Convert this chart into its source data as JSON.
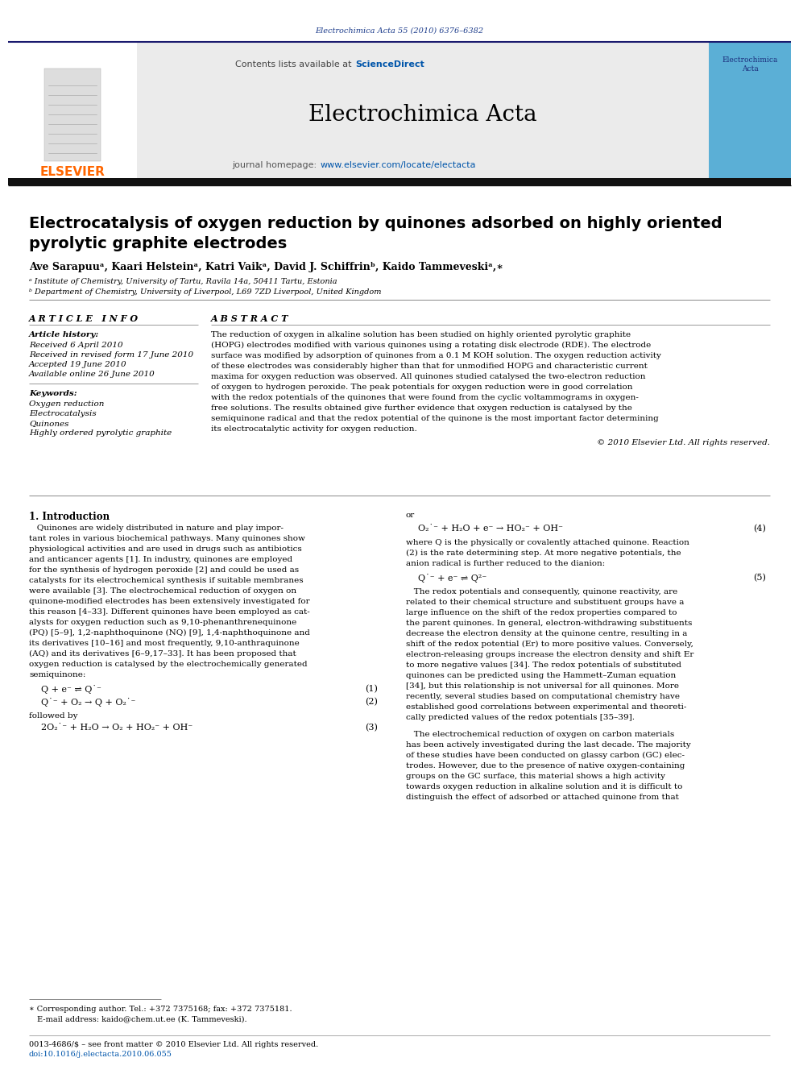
{
  "page_bg": "#ffffff",
  "header_journal_text": "Electrochimica Acta 55 (2010) 6376–6382",
  "header_journal_color": "#1a3a8a",
  "journal_banner_bg": "#e8e8e8",
  "journal_banner_text": "Electrochimica Acta",
  "contents_text": "Contents lists available at ",
  "sciencedirect_text": "ScienceDirect",
  "sciencedirect_color": "#0055aa",
  "homepage_label": "journal homepage: ",
  "homepage_url": "www.elsevier.com/locate/electacta",
  "homepage_url_color": "#0055aa",
  "elsevier_color": "#FF6600",
  "elsevier_text": "ELSEVIER",
  "dark_bar_color": "#111111",
  "article_title_line1": "Electrocatalysis of oxygen reduction by quinones adsorbed on highly oriented",
  "article_title_line2": "pyrolytic graphite electrodes",
  "article_title_color": "#000000",
  "authors_line": "Ave Sarapuuᵃ, Kaari Helsteinᵃ, Katri Vaikᵃ, David J. Schiffrinᵇ, Kaido Tammeveskiᵃ,∗",
  "affil_a": "ᵃ Institute of Chemistry, University of Tartu, Ravila 14a, 50411 Tartu, Estonia",
  "affil_b": "ᵇ Department of Chemistry, University of Liverpool, L69 7ZD Liverpool, United Kingdom",
  "article_info_header": "A R T I C L E   I N F O",
  "abstract_header": "A B S T R A C T",
  "article_history_label": "Article history:",
  "received_text": "Received 6 April 2010",
  "revised_text": "Received in revised form 17 June 2010",
  "accepted_text": "Accepted 19 June 2010",
  "available_text": "Available online 26 June 2010",
  "keywords_label": "Keywords:",
  "kw1": "Oxygen reduction",
  "kw2": "Electrocatalysis",
  "kw3": "Quinones",
  "kw4": "Highly ordered pyrolytic graphite",
  "abstract_text": "The reduction of oxygen in alkaline solution has been studied on highly oriented pyrolytic graphite\n(HOPG) electrodes modified with various quinones using a rotating disk electrode (RDE). The electrode\nsurface was modified by adsorption of quinones from a 0.1 M KOH solution. The oxygen reduction activity\nof these electrodes was considerably higher than that for unmodified HOPG and characteristic current\nmaxima for oxygen reduction was observed. All quinones studied catalysed the two-electron reduction\nof oxygen to hydrogen peroxide. The peak potentials for oxygen reduction were in good correlation\nwith the redox potentials of the quinones that were found from the cyclic voltammograms in oxygen-\nfree solutions. The results obtained give further evidence that oxygen reduction is catalysed by the\nsemiquinone radical and that the redox potential of the quinone is the most important factor determining\nits electrocatalytic activity for oxygen reduction.",
  "copyright_text": "© 2010 Elsevier Ltd. All rights reserved.",
  "intro_header": "1. Introduction",
  "intro_indent": "   Quinones are widely distributed in nature and play impor-\ntant roles in various biochemical pathways. Many quinones show\nphysiological activities and are used in drugs such as antibiotics\nand anticancer agents [1]. In industry, quinones are employed\nfor the synthesis of hydrogen peroxide [2] and could be used as\ncatalysts for its electrochemical synthesis if suitable membranes\nwere available [3]. The electrochemical reduction of oxygen on\nquinone-modified electrodes has been extensively investigated for\nthis reason [4–33]. Different quinones have been employed as cat-\nalysts for oxygen reduction such as 9,10-phenanthrenequinone\n(PQ) [5–9], 1,2-naphthoquinone (NQ) [9], 1,4-naphthoquinone and\nits derivatives [10–16] and most frequently, 9,10-anthraquinone\n(AQ) and its derivatives [6–9,17–33]. It has been proposed that\noxygen reduction is catalysed by the electrochemically generated\nsemiquinone:",
  "eq1": "Q + e⁻ ⇌ Q˙⁻",
  "eq1_num": "(1)",
  "eq2": "Q˙⁻ + O₂ → Q + O₂˙⁻",
  "eq2_num": "(2)",
  "followed_by": "followed by",
  "eq3": "2O₂˙⁻ + H₂O → O₂ + HO₂⁻ + OH⁻",
  "eq3_num": "(3)",
  "or_text": "or",
  "eq4": "O₂˙⁻ + H₂O + e⁻ → HO₂⁻ + OH⁻",
  "eq4_num": "(4)",
  "col2_para1": "where Q is the physically or covalently attached quinone. Reaction\n(2) is the rate determining step. At more negative potentials, the\nanion radical is further reduced to the dianion:",
  "eq5": "Q˙⁻ + e⁻ ⇌ Q²⁻",
  "eq5_num": "(5)",
  "col2_para2": "   The redox potentials and consequently, quinone reactivity, are\nrelated to their chemical structure and substituent groups have a\nlarge influence on the shift of the redox properties compared to\nthe parent quinones. In general, electron-withdrawing substituents\ndecrease the electron density at the quinone centre, resulting in a\nshift of the redox potential (Er) to more positive values. Conversely,\nelectron-releasing groups increase the electron density and shift Er\nto more negative values [34]. The redox potentials of substituted\nquinones can be predicted using the Hammett–Zuman equation\n[34], but this relationship is not universal for all quinones. More\nrecently, several studies based on computational chemistry have\nestablished good correlations between experimental and theoreti-\ncally predicted values of the redox potentials [35–39].",
  "col2_para3": "   The electrochemical reduction of oxygen on carbon materials\nhas been actively investigated during the last decade. The majority\nof these studies have been conducted on glassy carbon (GC) elec-\ntrodes. However, due to the presence of native oxygen-containing\ngroups on the GC surface, this material shows a high activity\ntowards oxygen reduction in alkaline solution and it is difficult to\ndistinguish the effect of adsorbed or attached quinone from that",
  "footnote_line": "∗ Corresponding author. Tel.: +372 7375168; fax: +372 7375181.",
  "footnote_email": "E-mail address: kaido@chem.ut.ee (K. Tammeveski).",
  "footer_issn": "0013-4686/$ – see front matter © 2010 Elsevier Ltd. All rights reserved.",
  "footer_doi": "doi:10.1016/j.electacta.2010.06.055"
}
